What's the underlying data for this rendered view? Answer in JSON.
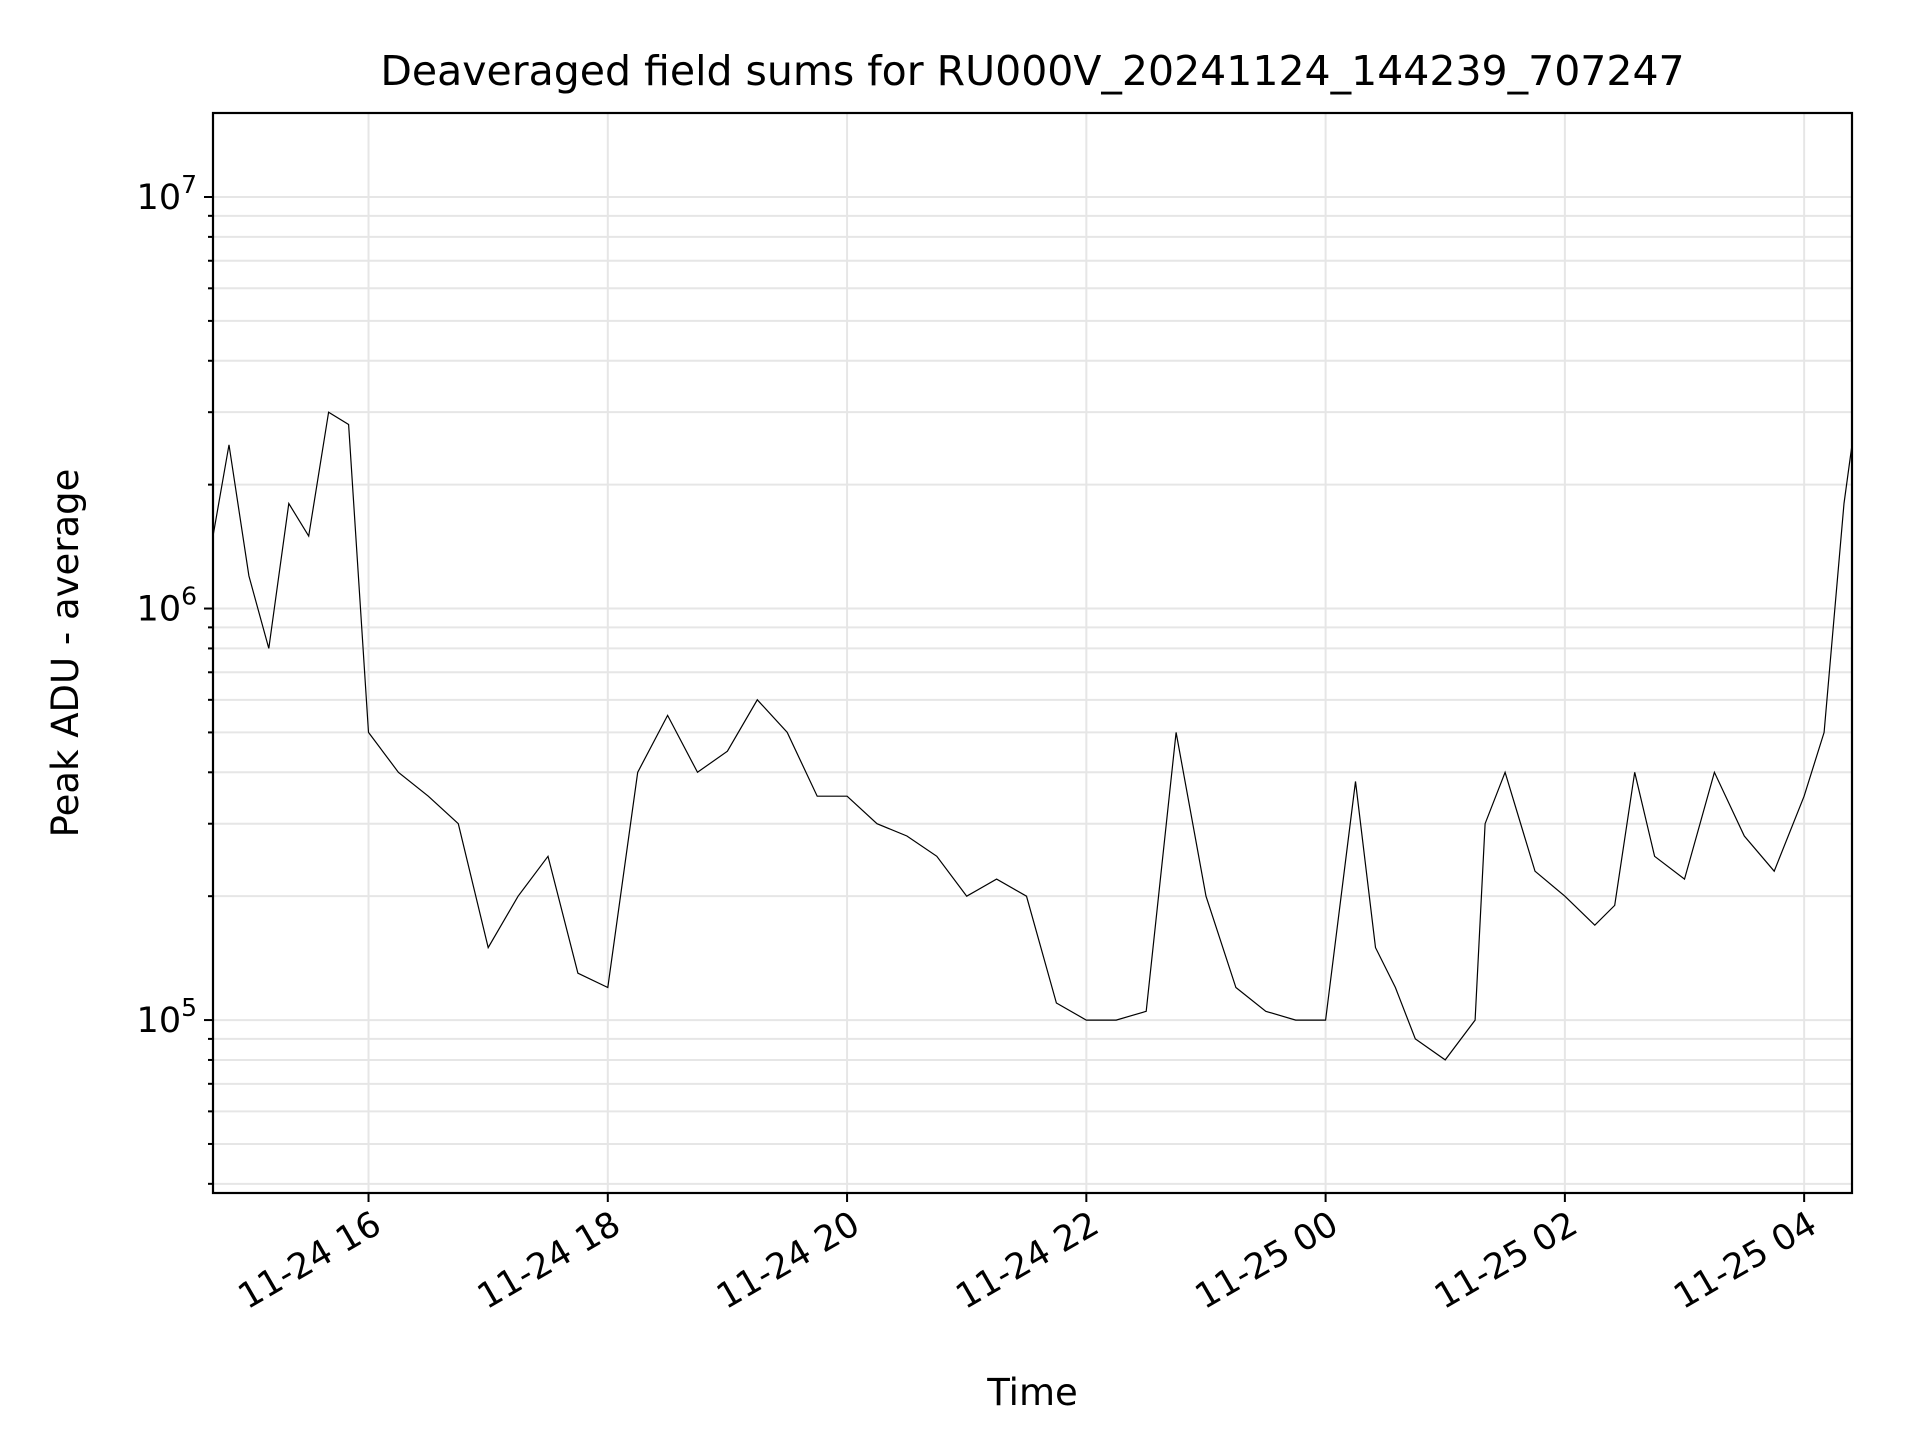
{
  "chart_data": {
    "type": "line",
    "title": "Deaveraged field sums for RU000V_20241124_144239_707247",
    "xlabel": "Time",
    "ylabel": "Peak ADU - average",
    "y_scale": "log",
    "grid": true,
    "x_range": [
      "2024-11-24 14:42",
      "2024-11-25 04:24"
    ],
    "ylim": [
      38000,
      16000000
    ],
    "x_ticks": [
      "11-24 16",
      "11-24 18",
      "11-24 20",
      "11-24 22",
      "11-25 00",
      "11-25 02",
      "11-25 04"
    ],
    "x_tick_times": [
      "2024-11-24 16:00",
      "2024-11-24 18:00",
      "2024-11-24 20:00",
      "2024-11-24 22:00",
      "2024-11-25 00:00",
      "2024-11-25 02:00",
      "2024-11-25 04:00"
    ],
    "y_ticks": [
      {
        "value": 100000,
        "base": "10",
        "exp": "5"
      },
      {
        "value": 1000000,
        "base": "10",
        "exp": "6"
      },
      {
        "value": 10000000,
        "base": "10",
        "exp": "7"
      }
    ],
    "series": [
      {
        "color": "#000000",
        "x": [
          "2024-11-24 14:42",
          "2024-11-24 14:50",
          "2024-11-24 15:00",
          "2024-11-24 15:10",
          "2024-11-24 15:20",
          "2024-11-24 15:30",
          "2024-11-24 15:40",
          "2024-11-24 15:50",
          "2024-11-24 16:00",
          "2024-11-24 16:15",
          "2024-11-24 16:30",
          "2024-11-24 16:45",
          "2024-11-24 17:00",
          "2024-11-24 17:15",
          "2024-11-24 17:30",
          "2024-11-24 17:45",
          "2024-11-24 18:00",
          "2024-11-24 18:15",
          "2024-11-24 18:30",
          "2024-11-24 18:45",
          "2024-11-24 19:00",
          "2024-11-24 19:15",
          "2024-11-24 19:30",
          "2024-11-24 19:45",
          "2024-11-24 20:00",
          "2024-11-24 20:15",
          "2024-11-24 20:30",
          "2024-11-24 20:45",
          "2024-11-24 21:00",
          "2024-11-24 21:15",
          "2024-11-24 21:30",
          "2024-11-24 21:45",
          "2024-11-24 22:00",
          "2024-11-24 22:15",
          "2024-11-24 22:30",
          "2024-11-24 22:45",
          "2024-11-24 23:00",
          "2024-11-24 23:15",
          "2024-11-24 23:30",
          "2024-11-24 23:45",
          "2024-11-25 00:00",
          "2024-11-25 00:15",
          "2024-11-25 00:25",
          "2024-11-25 00:35",
          "2024-11-25 00:45",
          "2024-11-25 01:00",
          "2024-11-25 01:15",
          "2024-11-25 01:20",
          "2024-11-25 01:30",
          "2024-11-25 01:45",
          "2024-11-25 02:00",
          "2024-11-25 02:15",
          "2024-11-25 02:25",
          "2024-11-25 02:35",
          "2024-11-25 02:45",
          "2024-11-25 03:00",
          "2024-11-25 03:15",
          "2024-11-25 03:30",
          "2024-11-25 03:45",
          "2024-11-25 04:00",
          "2024-11-25 04:10",
          "2024-11-25 04:20",
          "2024-11-25 04:24"
        ],
        "y": [
          1500000,
          2500000,
          1200000,
          800000,
          1800000,
          1500000,
          3000000,
          2800000,
          500000,
          400000,
          350000,
          300000,
          150000,
          200000,
          250000,
          130000,
          120000,
          400000,
          550000,
          400000,
          450000,
          600000,
          500000,
          350000,
          350000,
          300000,
          280000,
          250000,
          200000,
          220000,
          200000,
          110000,
          100000,
          100000,
          105000,
          500000,
          200000,
          120000,
          105000,
          100000,
          100000,
          380000,
          150000,
          120000,
          90000,
          80000,
          100000,
          300000,
          400000,
          230000,
          200000,
          170000,
          190000,
          400000,
          250000,
          220000,
          400000,
          280000,
          230000,
          350000,
          500000,
          1800000,
          2500000
        ]
      }
    ]
  }
}
